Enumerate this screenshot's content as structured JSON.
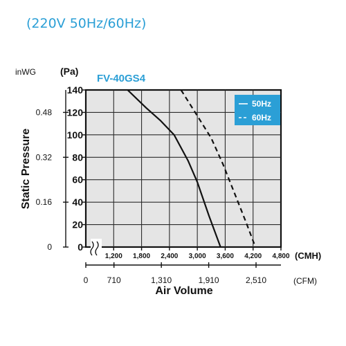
{
  "header": {
    "title": "(220V 50Hz/60Hz)"
  },
  "chart_data": {
    "type": "line",
    "title": "FV-40GS4",
    "xlabel": "Air Volume",
    "ylabel": "Static Pressure",
    "x_unit": "(CMH)",
    "y_unit": "(Pa)",
    "secondary_x_unit": "(CFM)",
    "secondary_y_unit": "inWG",
    "xlim": [
      600,
      4800
    ],
    "ylim": [
      0,
      140
    ],
    "x_ticks": [
      1200,
      1800,
      2400,
      3000,
      3600,
      4200,
      4800
    ],
    "x_tick_labels": [
      "1,200",
      "1,800",
      "2,400",
      "3,000",
      "3,600",
      "4,200",
      "4,800"
    ],
    "y_ticks": [
      0,
      20,
      40,
      60,
      80,
      100,
      120,
      140
    ],
    "y_tick_labels": [
      "0",
      "20",
      "40",
      "60",
      "80",
      "100",
      "120",
      "140"
    ],
    "secondary_x_ticks": [
      {
        "label": "0",
        "cmh": 0
      },
      {
        "label": "710",
        "cmh": 1206
      },
      {
        "label": "1,310",
        "cmh": 2226
      },
      {
        "label": "1,910",
        "cmh": 3245
      },
      {
        "label": "2,510",
        "cmh": 4264
      }
    ],
    "secondary_y_ticks": [
      {
        "label": "0",
        "pa": 0
      },
      {
        "label": "0.16",
        "pa": 40
      },
      {
        "label": "0.32",
        "pa": 80
      },
      {
        "label": "0.48",
        "pa": 120
      }
    ],
    "grid": true,
    "legend_position": "top-right",
    "series": [
      {
        "name": "50Hz",
        "style": "solid",
        "x": [
          1500,
          1900,
          2200,
          2500,
          2800,
          3000,
          3250,
          3500
        ],
        "y": [
          140,
          124,
          113,
          100,
          77,
          58,
          28,
          0
        ]
      },
      {
        "name": "60Hz",
        "style": "dashed",
        "x": [
          2650,
          3000,
          3300,
          3550,
          3800,
          4050,
          4250
        ],
        "y": [
          140,
          117,
          97,
          74,
          48,
          22,
          0
        ]
      }
    ]
  },
  "colors": {
    "accent": "#2b9fd6",
    "plot_background": "#e5e5e5",
    "grid": "#2a2a2a",
    "curve": "#111111",
    "legend_background": "#2b9fd6",
    "legend_text": "#ffffff"
  }
}
